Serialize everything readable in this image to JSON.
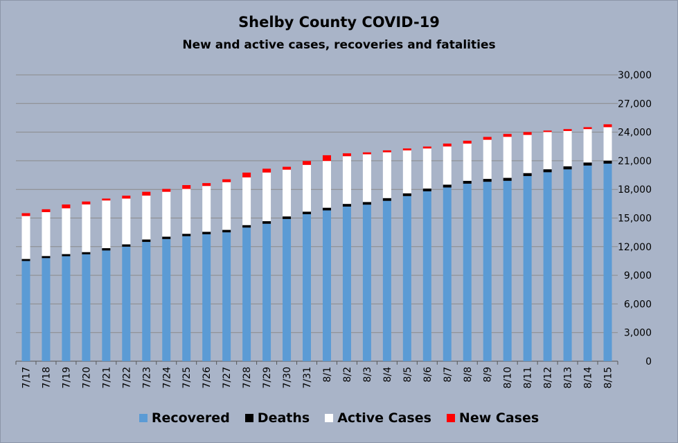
{
  "chart_data": {
    "type": "bar",
    "stacked": true,
    "title": "Shelby County COVID-19",
    "subtitle": "New and active cases, recoveries and fatalities",
    "categories": [
      "7/17",
      "7/18",
      "7/19",
      "7/20",
      "7/21",
      "7/22",
      "7/23",
      "7/24",
      "7/25",
      "7/26",
      "7/27",
      "7/28",
      "7/29",
      "7/30",
      "7/31",
      "8/1",
      "8/2",
      "8/3",
      "8/4",
      "8/5",
      "8/6",
      "8/7",
      "8/8",
      "8/9",
      "8/10",
      "8/11",
      "8/12",
      "8/13",
      "8/14",
      "8/15"
    ],
    "series": [
      {
        "name": "Recovered",
        "color": "#5b9bd5",
        "values": [
          10500,
          10800,
          11000,
          11200,
          11600,
          12000,
          12500,
          12800,
          13100,
          13300,
          13500,
          14000,
          14400,
          14900,
          15400,
          15800,
          16200,
          16400,
          16800,
          17300,
          17800,
          18200,
          18600,
          18800,
          18900,
          19400,
          19800,
          20100,
          20500,
          20700
        ]
      },
      {
        "name": "Deaths",
        "color": "#000000",
        "values": [
          210,
          220,
          220,
          230,
          240,
          240,
          250,
          250,
          250,
          260,
          260,
          260,
          270,
          270,
          270,
          280,
          280,
          280,
          290,
          290,
          290,
          300,
          300,
          300,
          310,
          310,
          310,
          320,
          320,
          320
        ]
      },
      {
        "name": "Active Cases",
        "color": "#ffffff",
        "values": [
          4500,
          4600,
          4800,
          5000,
          5000,
          4800,
          4600,
          4700,
          4700,
          4800,
          5000,
          5000,
          5100,
          4900,
          4900,
          4900,
          5000,
          5000,
          4800,
          4500,
          4200,
          4000,
          3900,
          4100,
          4300,
          4000,
          3900,
          3700,
          3500,
          3500
        ]
      },
      {
        "name": "New Cases",
        "color": "#ff0000",
        "values": [
          300,
          300,
          400,
          300,
          200,
          300,
          400,
          300,
          400,
          300,
          300,
          500,
          400,
          300,
          400,
          600,
          300,
          200,
          200,
          200,
          200,
          300,
          300,
          300,
          300,
          300,
          150,
          200,
          200,
          300
        ]
      }
    ],
    "ylim": [
      0,
      30000
    ],
    "yticks": [
      "0",
      "3,000",
      "6,000",
      "9,000",
      "12,000",
      "15,000",
      "18,000",
      "21,000",
      "24,000",
      "27,000",
      "30,000"
    ],
    "y_axis_side": "right",
    "grid": true,
    "legend": "bottom"
  }
}
